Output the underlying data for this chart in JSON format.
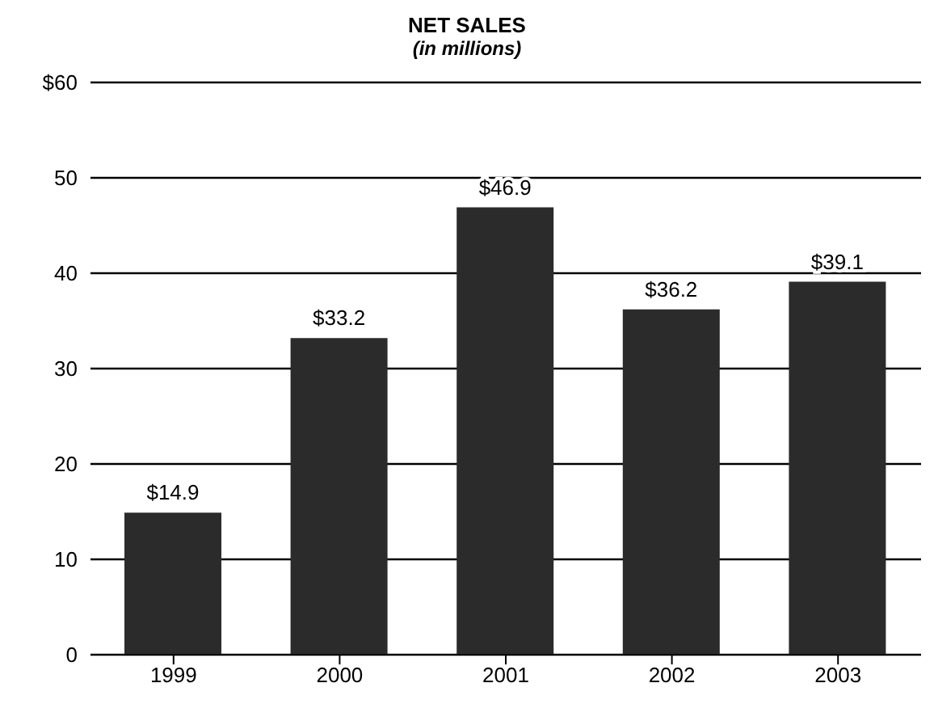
{
  "chart_data": {
    "type": "bar",
    "title": "NET SALES",
    "subtitle": "(in millions)",
    "categories": [
      "1999",
      "2000",
      "2001",
      "2002",
      "2003"
    ],
    "values": [
      14.9,
      33.2,
      46.9,
      36.2,
      39.1
    ],
    "value_labels": [
      "$14.9",
      "$33.2",
      "$46.9",
      "$36.2",
      "$39.1"
    ],
    "color": "#2b2b2b",
    "ylim": [
      0,
      60
    ],
    "yticks": [
      0,
      10,
      20,
      30,
      40,
      50,
      {
        "value": 60,
        "label": "$60"
      }
    ],
    "grid": "y"
  }
}
